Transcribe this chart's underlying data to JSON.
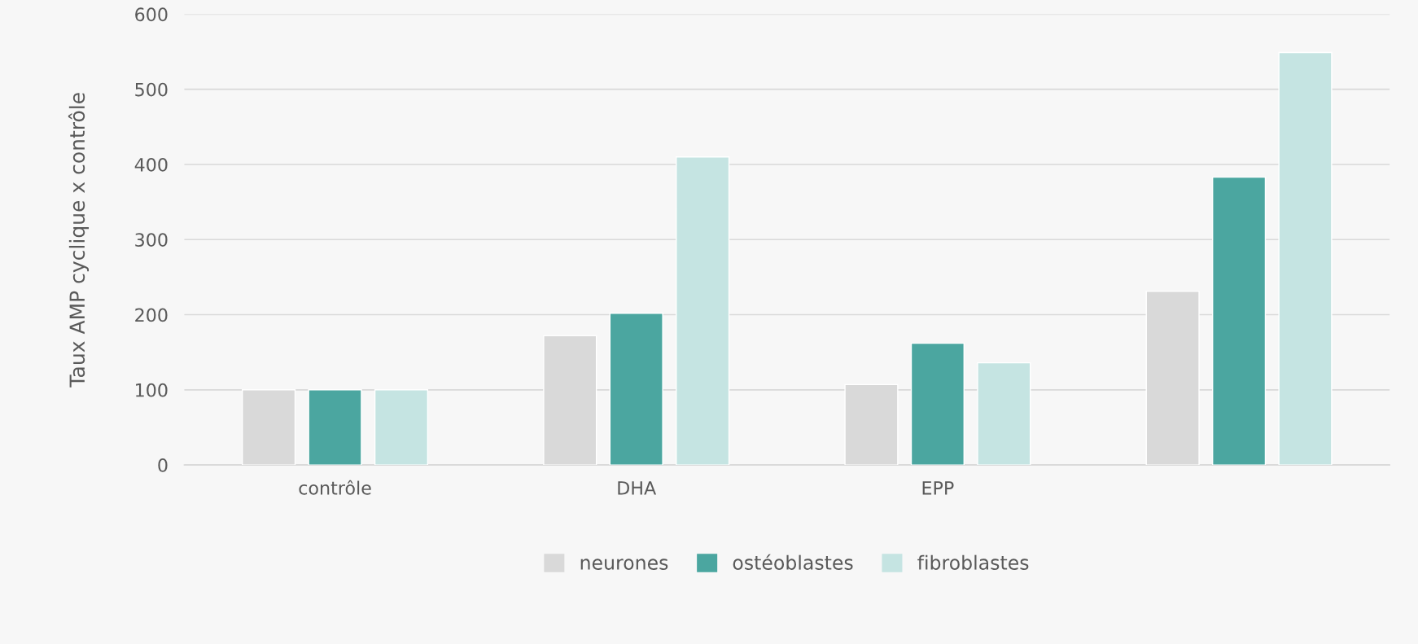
{
  "chart_data": {
    "type": "bar",
    "ylabel": "Taux AMP cyclique x contrôle",
    "categories": [
      "contrôle",
      "DHA",
      "EPP",
      null
    ],
    "series": [
      {
        "name": "neurones",
        "color": "#d9d9d9",
        "values": [
          100,
          172,
          107,
          231
        ]
      },
      {
        "name": "ostéoblastes",
        "color": "#4ba6a0",
        "values": [
          100,
          202,
          162,
          383
        ]
      },
      {
        "name": "fibroblastes",
        "color": "#c5e4e2",
        "values": [
          100,
          410,
          136,
          549
        ]
      }
    ],
    "ylim": [
      0,
      600
    ],
    "yticks": [
      0,
      100,
      200,
      300,
      400,
      500,
      600
    ],
    "grid": "y",
    "legend": "bottom"
  }
}
